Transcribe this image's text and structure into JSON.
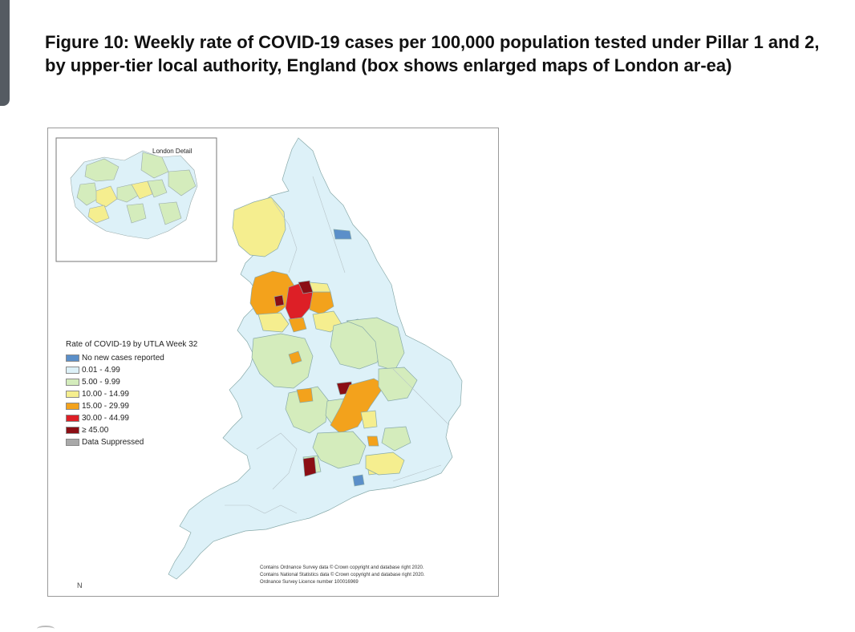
{
  "figure": {
    "caption": "Figure 10: Weekly rate of COVID-19 cases per 100,000 population tested under Pillar 1 and 2, by upper-tier local authority, England (box shows enlarged maps of London ar-ea)"
  },
  "inset": {
    "title": "London Detail"
  },
  "legend": {
    "title": "Rate of COVID-19 by UTLA Week 32",
    "items": [
      {
        "label": "No new cases reported",
        "color": "#5b8fc9"
      },
      {
        "label": "0.01 - 4.99",
        "color": "#ddf1f8"
      },
      {
        "label": "5.00 - 9.99",
        "color": "#d4ecbc"
      },
      {
        "label": "10.00 - 14.99",
        "color": "#f5ee8f"
      },
      {
        "label": "15.00 - 29.99",
        "color": "#f3a21c"
      },
      {
        "label": "30.00 - 44.99",
        "color": "#dd1f26"
      },
      {
        "label": "≥ 45.00",
        "color": "#8b0e14"
      },
      {
        "label": "Data Suppressed",
        "color": "#a9a9a9"
      }
    ]
  },
  "credits": [
    "Contains Ordnance Survey data © Crown copyright and database right 2020.",
    "Contains National Statistics data © Crown copyright and database right 2020.",
    "Ordnance Survey Licence number 100016969"
  ],
  "north_marker": "N"
}
